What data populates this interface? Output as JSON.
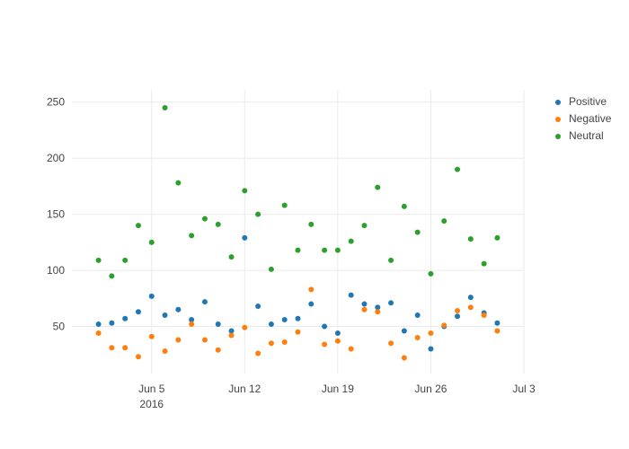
{
  "chart_data": {
    "type": "scatter",
    "title": "",
    "xlabel": "",
    "ylabel": "",
    "x": [
      "2016-06-01",
      "2016-06-02",
      "2016-06-03",
      "2016-06-04",
      "2016-06-05",
      "2016-06-06",
      "2016-06-07",
      "2016-06-08",
      "2016-06-09",
      "2016-06-10",
      "2016-06-11",
      "2016-06-12",
      "2016-06-13",
      "2016-06-14",
      "2016-06-15",
      "2016-06-16",
      "2016-06-17",
      "2016-06-18",
      "2016-06-19",
      "2016-06-20",
      "2016-06-21",
      "2016-06-22",
      "2016-06-23",
      "2016-06-24",
      "2016-06-25",
      "2016-06-26",
      "2016-06-27",
      "2016-06-28",
      "2016-06-29",
      "2016-06-30",
      "2016-07-01"
    ],
    "series": [
      {
        "name": "Positive",
        "color": "#1f77b4",
        "values": [
          52,
          53,
          57,
          63,
          77,
          60,
          65,
          56,
          72,
          52,
          46,
          129,
          68,
          52,
          56,
          57,
          70,
          50,
          44,
          78,
          70,
          67,
          71,
          46,
          60,
          30,
          50,
          59,
          76,
          62,
          53
        ]
      },
      {
        "name": "Negative",
        "color": "#ff7f0e",
        "values": [
          44,
          31,
          31,
          23,
          41,
          28,
          38,
          52,
          38,
          29,
          42,
          49,
          26,
          35,
          36,
          45,
          83,
          34,
          37,
          30,
          65,
          63,
          35,
          22,
          40,
          44,
          51,
          64,
          67,
          60,
          46
        ]
      },
      {
        "name": "Neutral",
        "color": "#2ca02c",
        "values": [
          109,
          95,
          109,
          140,
          125,
          245,
          178,
          131,
          146,
          141,
          112,
          171,
          150,
          101,
          158,
          118,
          141,
          118,
          118,
          126,
          140,
          174,
          109,
          157,
          134,
          97,
          144,
          190,
          128,
          106,
          129
        ]
      }
    ],
    "x_axis": {
      "tick_labels": [
        "Jun 5",
        "Jun 12",
        "Jun 19",
        "Jun 26",
        "Jul 3"
      ],
      "tick_days": [
        5,
        12,
        19,
        26,
        33
      ],
      "year_label": "2016",
      "range_days": [
        -1,
        33
      ]
    },
    "y_axis": {
      "tick_labels": [
        "50",
        "100",
        "150",
        "200",
        "250"
      ],
      "ticks": [
        50,
        100,
        150,
        200,
        250
      ],
      "range": [
        8,
        261
      ]
    },
    "grid": true,
    "legend_position": "right",
    "marker_size_px": 6,
    "colors": {
      "background": "#ffffff",
      "grid": "#ebebeb",
      "tick_text": "#444444",
      "legend_text": "#444444"
    }
  }
}
